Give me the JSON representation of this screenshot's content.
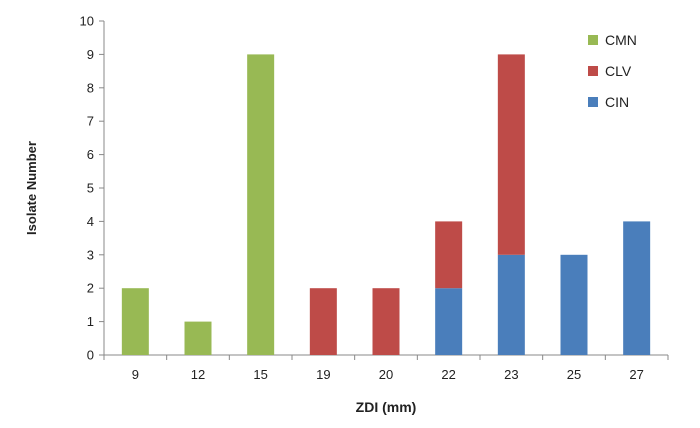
{
  "chart_data": {
    "type": "bar",
    "stacked": true,
    "categories": [
      "9",
      "12",
      "15",
      "19",
      "20",
      "22",
      "23",
      "25",
      "27"
    ],
    "series": [
      {
        "name": "CIN",
        "color": "#4A7EBB",
        "values": [
          0,
          0,
          0,
          0,
          0,
          2,
          3,
          3,
          4
        ]
      },
      {
        "name": "CLV",
        "color": "#BE4B48",
        "values": [
          0,
          0,
          0,
          2,
          2,
          2,
          6,
          0,
          0
        ]
      },
      {
        "name": "CMN",
        "color": "#98B954",
        "values": [
          2,
          1,
          9,
          0,
          0,
          0,
          0,
          0,
          0
        ]
      }
    ],
    "legend_order": [
      "CMN",
      "CLV",
      "CIN"
    ],
    "legend_position": "top-right",
    "xlabel": "ZDI (mm)",
    "ylabel": "Isolate Number",
    "ylim": [
      0,
      10
    ],
    "yticks": [
      0,
      1,
      2,
      3,
      4,
      5,
      6,
      7,
      8,
      9,
      10
    ],
    "grid": false
  }
}
